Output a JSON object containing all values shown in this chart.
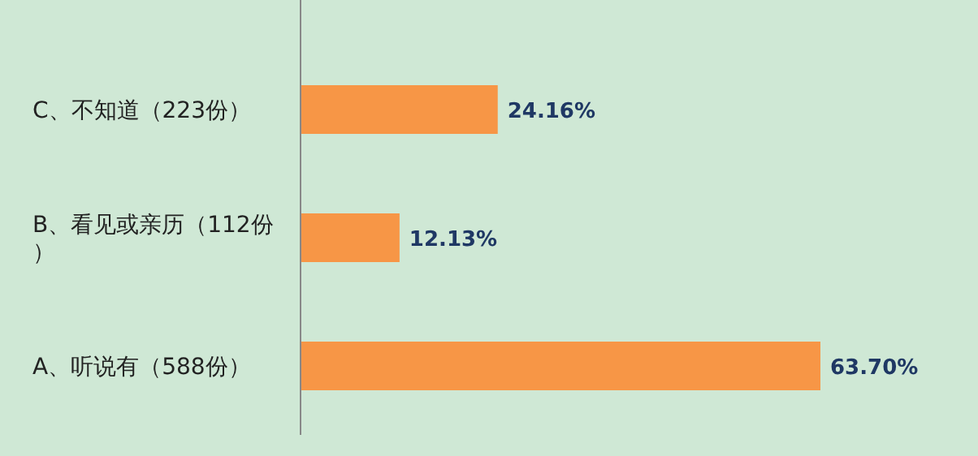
{
  "chart_data": {
    "type": "bar",
    "orientation": "horizontal",
    "categories": [
      "C、不知道（223份）",
      "B、看见或亲历（112份）",
      "A、听说有（588份）"
    ],
    "values": [
      24.16,
      12.13,
      63.7
    ],
    "value_labels": [
      "24.16%",
      "12.13%",
      "63.70%"
    ],
    "color": "#f79646"
  }
}
